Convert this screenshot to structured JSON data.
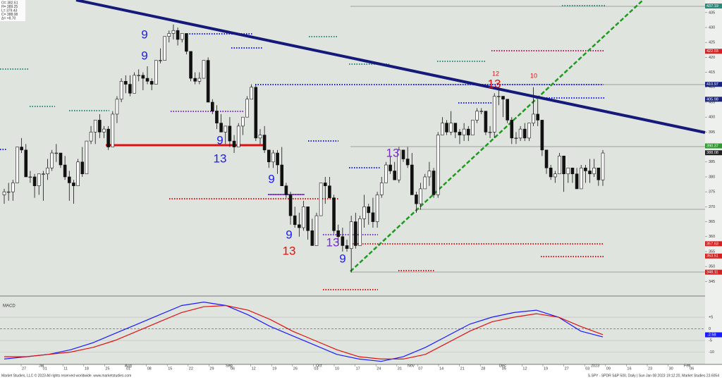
{
  "chart_data": {
    "type": "candlestick",
    "info": [
      "O= 382.61",
      "H= 389.25",
      "L= 379.43",
      "C= 388.08",
      "Δ= +8.70"
    ],
    "ylim": [
      340.6,
      439.2
    ],
    "yticks": [
      345,
      350,
      355,
      360,
      365,
      370,
      375,
      380,
      385,
      390,
      395,
      400,
      405,
      410,
      415,
      420,
      425,
      430,
      435
    ],
    "price_badges": [
      {
        "value": 437.19,
        "color": "#2a8a7a"
      },
      {
        "value": 422.03,
        "color": "#d42020"
      },
      {
        "value": 410.97,
        "color": "#1a237e"
      },
      {
        "value": 405.98,
        "color": "#1a237e"
      },
      {
        "value": 390.37,
        "color": "#2e9a2e"
      },
      {
        "value": 388.08,
        "color": "#222222"
      },
      {
        "value": 357.63,
        "color": "#d42020"
      },
      {
        "value": 353.51,
        "color": "#d42020"
      },
      {
        "value": 348.11,
        "color": "#d42020"
      }
    ],
    "x_labels": [
      "27",
      "01",
      "11",
      "18",
      "25",
      "01",
      "08",
      "15",
      "22",
      "29",
      "06",
      "12",
      "19",
      "26",
      "03",
      "10",
      "17",
      "24",
      "31",
      "07",
      "14",
      "21",
      "28",
      "05",
      "12",
      "19",
      "27",
      "03",
      "09",
      "16",
      "23",
      "30",
      "06"
    ],
    "month_labels": [
      "Jul",
      "Aug",
      "Sep",
      "Oct",
      "Nov",
      "Dec",
      "2023",
      "Feb"
    ],
    "open": [
      374,
      375,
      375,
      378,
      390,
      389,
      380,
      380,
      377,
      381,
      381,
      383,
      388,
      388,
      384,
      380,
      378,
      377,
      385,
      381,
      392,
      395,
      399,
      395,
      396,
      390,
      401,
      406,
      412,
      411,
      408,
      414,
      414,
      413,
      412,
      411,
      419,
      419,
      427,
      428,
      429,
      426,
      428,
      422,
      413,
      412,
      413,
      419,
      405,
      402,
      398,
      395,
      397,
      392,
      390,
      397,
      400,
      406,
      410,
      393,
      394,
      389,
      385,
      388,
      384,
      377,
      374,
      367,
      364,
      363,
      370,
      362,
      357,
      367,
      378,
      377,
      373,
      362,
      360,
      357,
      356,
      365,
      357,
      366,
      370,
      368,
      365,
      374,
      378,
      384,
      382,
      379,
      389,
      386,
      384,
      374,
      371,
      376,
      380,
      382,
      374,
      394,
      398,
      395,
      398,
      395,
      394,
      396,
      394,
      399,
      402,
      402,
      395,
      395,
      407,
      407,
      406,
      399,
      393,
      393,
      396,
      393,
      398,
      401,
      399,
      389,
      383,
      380,
      381,
      387,
      381,
      383,
      381,
      376,
      383,
      382,
      381,
      383,
      379
    ],
    "high": [
      376,
      378,
      379,
      390,
      393,
      391,
      382,
      381,
      381,
      382,
      386,
      389,
      391,
      388,
      387,
      382,
      379,
      386,
      390,
      392,
      397,
      399,
      401,
      397,
      397,
      402,
      407,
      413,
      414,
      414,
      415,
      416,
      415,
      417,
      413,
      419,
      423,
      427,
      429,
      431,
      430,
      428,
      428,
      422,
      415,
      415,
      419,
      420,
      406,
      404,
      401,
      397,
      400,
      394,
      398,
      400,
      407,
      411,
      411,
      396,
      397,
      389,
      389,
      389,
      390,
      378,
      375,
      370,
      368,
      372,
      370,
      366,
      368,
      378,
      380,
      380,
      374,
      364,
      363,
      359,
      367,
      368,
      367,
      374,
      371,
      373,
      375,
      380,
      385,
      387,
      385,
      390,
      389,
      390,
      388,
      375,
      378,
      381,
      385,
      383,
      395,
      400,
      399,
      402,
      398,
      396,
      398,
      397,
      399,
      403,
      403,
      402,
      397,
      408,
      410,
      407,
      406,
      400,
      395,
      397,
      398,
      398,
      410,
      406,
      399,
      389,
      384,
      382,
      388,
      387,
      383,
      383,
      383,
      384,
      384,
      386,
      386,
      383,
      389
    ],
    "low": [
      371,
      372,
      372,
      378,
      388,
      380,
      378,
      373,
      374,
      372,
      379,
      382,
      385,
      383,
      379,
      372,
      371,
      377,
      380,
      381,
      391,
      391,
      393,
      393,
      389,
      390,
      398,
      405,
      408,
      407,
      408,
      412,
      409,
      411,
      409,
      411,
      418,
      419,
      425,
      426,
      424,
      425,
      421,
      412,
      411,
      411,
      413,
      405,
      401,
      396,
      395,
      391,
      390,
      388,
      390,
      394,
      400,
      406,
      392,
      391,
      388,
      383,
      383,
      381,
      377,
      373,
      364,
      363,
      360,
      362,
      359,
      357,
      357,
      367,
      371,
      373,
      361,
      357,
      355,
      355,
      348,
      356,
      357,
      363,
      364,
      363,
      363,
      373,
      378,
      381,
      379,
      378,
      385,
      383,
      374,
      368,
      369,
      376,
      377,
      373,
      373,
      394,
      394,
      394,
      393,
      391,
      392,
      392,
      394,
      398,
      401,
      394,
      393,
      393,
      404,
      400,
      398,
      391,
      391,
      392,
      392,
      392,
      397,
      397,
      387,
      381,
      379,
      378,
      381,
      375,
      378,
      378,
      376,
      376,
      378,
      378,
      380,
      377,
      377
    ],
    "close": [
      375,
      375,
      378,
      390,
      389,
      380,
      380,
      377,
      381,
      381,
      383,
      388,
      388,
      384,
      380,
      378,
      377,
      385,
      381,
      392,
      395,
      399,
      395,
      396,
      390,
      401,
      406,
      412,
      411,
      408,
      414,
      414,
      413,
      412,
      411,
      419,
      419,
      427,
      428,
      429,
      426,
      428,
      422,
      413,
      412,
      413,
      419,
      405,
      402,
      398,
      395,
      397,
      392,
      390,
      397,
      400,
      406,
      410,
      393,
      394,
      389,
      385,
      388,
      384,
      377,
      374,
      367,
      364,
      363,
      370,
      362,
      357,
      367,
      378,
      377,
      373,
      362,
      360,
      357,
      356,
      365,
      357,
      366,
      370,
      368,
      365,
      374,
      378,
      384,
      382,
      379,
      389,
      386,
      384,
      374,
      371,
      376,
      380,
      382,
      374,
      394,
      398,
      395,
      398,
      395,
      394,
      396,
      394,
      399,
      402,
      402,
      395,
      395,
      407,
      407,
      406,
      399,
      393,
      393,
      396,
      393,
      398,
      401,
      399,
      389,
      383,
      380,
      381,
      387,
      381,
      383,
      381,
      376,
      383,
      382,
      381,
      383,
      379,
      388
    ],
    "annotations": [
      {
        "text": "9",
        "color": "#1a1aff"
      },
      {
        "text": "9",
        "color": "#1a1aff"
      },
      {
        "text": "9",
        "color": "#1a1aff"
      },
      {
        "text": "13",
        "color": "#1a1aff"
      },
      {
        "text": "9",
        "color": "#1a1aff"
      },
      {
        "text": "9",
        "color": "#1a1aff"
      },
      {
        "text": "13",
        "color": "#e01010"
      },
      {
        "text": "13",
        "color": "#7a2ad0"
      },
      {
        "text": "9",
        "color": "#1a1aff"
      },
      {
        "text": "13",
        "color": "#7a2ad0"
      },
      {
        "text": "13",
        "color": "#e01010"
      },
      {
        "text": "10",
        "color": "#e01010"
      },
      {
        "text": "12",
        "color": "#e01010"
      }
    ],
    "macd": {
      "title": "MACD",
      "ylim": [
        -15,
        13.8
      ],
      "yticks": [
        {
          "value": 5,
          "label": "+5"
        },
        0,
        -5,
        -10
      ],
      "current": -2.58,
      "series": [
        {
          "name": "MACD",
          "color": "#1a1aff",
          "values": [
            -13,
            -12,
            -11,
            -9,
            -6,
            -2,
            2,
            6,
            10,
            11.5,
            10,
            6,
            1,
            -3,
            -7,
            -11,
            -13,
            -14,
            -12,
            -8,
            -3,
            2,
            5,
            7,
            8,
            5,
            -1,
            -3.5
          ]
        },
        {
          "name": "Signal",
          "color": "#e01010",
          "values": [
            -12,
            -12,
            -11,
            -10,
            -8,
            -5,
            -1,
            3,
            7,
            9.5,
            10,
            8,
            4,
            -1,
            -5,
            -9,
            -12,
            -13,
            -13,
            -11,
            -6,
            -1,
            3,
            5,
            6.5,
            5,
            1,
            -2.5
          ]
        }
      ]
    },
    "footer_left": "Market Studies, LLC © 2023 All rights reserved worldwide. www.marketstudies.com",
    "footer_right": "S.SPY - SPDR S&P 500, Daily | Sun Jan 08 2023 19:12:20, Market Studies 23.6054"
  }
}
